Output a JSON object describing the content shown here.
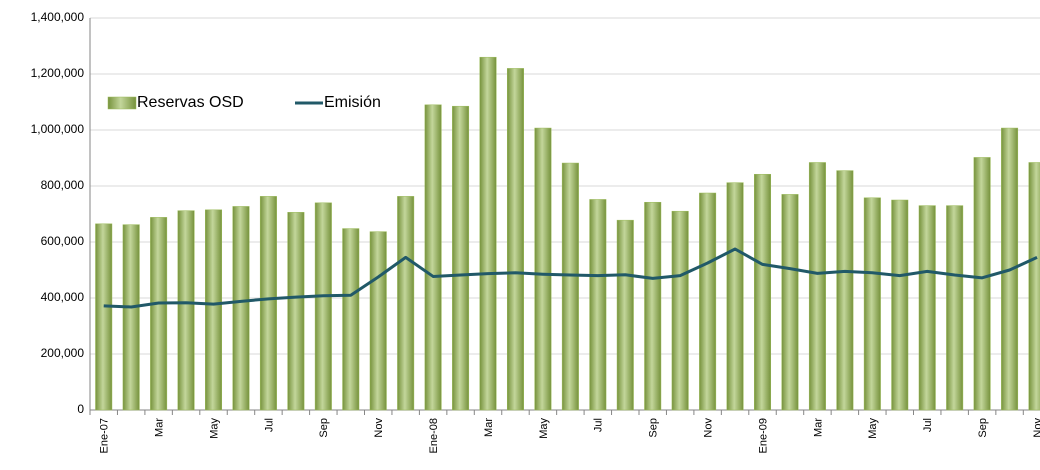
{
  "chart_data": {
    "type": "bar_line",
    "categories": [
      "Ene-07",
      null,
      "Mar",
      null,
      "May",
      null,
      "Jul",
      null,
      "Sep",
      null,
      "Nov",
      null,
      "Ene-08",
      null,
      "Mar",
      null,
      "May",
      null,
      "Jul",
      null,
      "Sep",
      null,
      "Nov",
      null,
      "Ene-09",
      null,
      "Mar",
      null,
      "May",
      null,
      "Jul",
      null,
      "Sep",
      null,
      "Nov"
    ],
    "series": [
      {
        "name": "Reservas OSD",
        "type": "bar",
        "color": "#9bbb59",
        "values": [
          665000,
          662000,
          688000,
          712000,
          715000,
          727000,
          763000,
          706000,
          740000,
          648000,
          637000,
          763000,
          1090000,
          1085000,
          1260000,
          1220000,
          1007000,
          882000,
          752000,
          678000,
          742000,
          710000,
          775000,
          812000,
          842000,
          770000,
          884000,
          855000,
          758000,
          750000,
          730000,
          730000,
          902000,
          1007000,
          884000
        ]
      },
      {
        "name": "Emisión",
        "type": "line",
        "color": "#215968",
        "values": [
          372000,
          368000,
          382000,
          383000,
          378000,
          388000,
          397000,
          403000,
          408000,
          410000,
          475000,
          545000,
          477000,
          482000,
          487000,
          490000,
          485000,
          482000,
          480000,
          483000,
          470000,
          480000,
          525000,
          575000,
          520000,
          505000,
          488000,
          495000,
          490000,
          480000,
          495000,
          482000,
          472000,
          500000,
          545000
        ]
      }
    ],
    "ylim": [
      0,
      1400000
    ],
    "yticks": [
      0,
      {
        "value": 200000,
        "label": "200,000"
      },
      {
        "value": 400000,
        "label": "400,000"
      },
      {
        "value": 600000,
        "label": "600,000"
      },
      {
        "value": 800000,
        "label": "800,000"
      },
      {
        "value": 1000000,
        "label": "1,000,000"
      },
      {
        "value": 1200000,
        "label": "1,200,000"
      },
      {
        "value": 1400000,
        "label": "1,400,000"
      }
    ],
    "grid": true,
    "legend": "top-left"
  }
}
